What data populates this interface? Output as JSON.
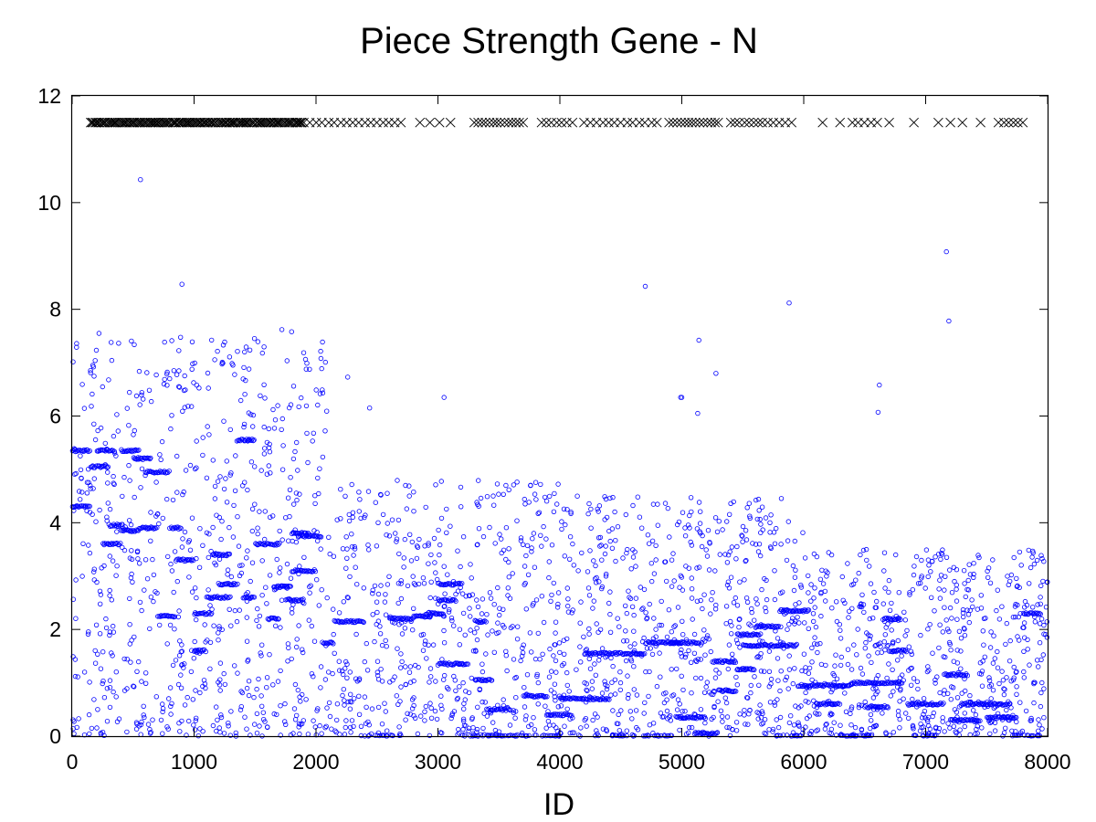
{
  "chart_data": {
    "type": "scatter",
    "title": "Piece Strength Gene - N",
    "xlabel": "ID",
    "ylabel": "",
    "xlim": [
      0,
      8000
    ],
    "ylim": [
      0,
      12
    ],
    "x_ticks": [
      "0",
      "1000",
      "2000",
      "3000",
      "4000",
      "5000",
      "6000",
      "7000",
      "8000"
    ],
    "y_ticks": [
      "0",
      "2",
      "4",
      "6",
      "8",
      "10",
      "12"
    ],
    "grid": false,
    "legend": "none",
    "series": [
      {
        "marker": "circle",
        "color": "#0000ff",
        "segments": [
          {
            "x": [
              0,
              150
            ],
            "y": 4.3
          },
          {
            "x": [
              0,
              150
            ],
            "y": 5.35
          },
          {
            "x": [
              150,
              300
            ],
            "y": 5.05
          },
          {
            "x": [
              200,
              350
            ],
            "y": 5.35
          },
          {
            "x": [
              250,
              400
            ],
            "y": 3.6
          },
          {
            "x": [
              300,
              420
            ],
            "y": 3.95
          },
          {
            "x": [
              400,
              550
            ],
            "y": 5.35
          },
          {
            "x": [
              400,
              550
            ],
            "y": 3.85
          },
          {
            "x": [
              500,
              650
            ],
            "y": 5.2
          },
          {
            "x": [
              550,
              700
            ],
            "y": 3.9
          },
          {
            "x": [
              600,
              800
            ],
            "y": 4.95
          },
          {
            "x": [
              700,
              850
            ],
            "y": 2.25
          },
          {
            "x": [
              800,
              900
            ],
            "y": 3.9
          },
          {
            "x": [
              850,
              1000
            ],
            "y": 3.3
          },
          {
            "x": [
              1000,
              1150
            ],
            "y": 2.3
          },
          {
            "x": [
              1000,
              1100
            ],
            "y": 1.6
          },
          {
            "x": [
              1100,
              1300
            ],
            "y": 2.6
          },
          {
            "x": [
              1150,
              1300
            ],
            "y": 3.4
          },
          {
            "x": [
              1200,
              1350
            ],
            "y": 2.85
          },
          {
            "x": [
              1350,
              1500
            ],
            "y": 5.55
          },
          {
            "x": [
              1400,
              1500
            ],
            "y": 2.6
          },
          {
            "x": [
              1500,
              1700
            ],
            "y": 3.6
          },
          {
            "x": [
              1600,
              1700
            ],
            "y": 2.2
          },
          {
            "x": [
              1650,
              1800
            ],
            "y": 2.8
          },
          {
            "x": [
              1750,
              1900
            ],
            "y": 2.55
          },
          {
            "x": [
              1800,
              2000
            ],
            "y": 3.1
          },
          {
            "x": [
              1800,
              1950
            ],
            "y": 3.8
          },
          {
            "x": [
              1850,
              2050
            ],
            "y": 3.75
          },
          {
            "x": [
              2050,
              2150
            ],
            "y": 1.75
          },
          {
            "x": [
              2150,
              2400
            ],
            "y": 2.15
          },
          {
            "x": [
              2400,
              2700
            ],
            "y": 0.0
          },
          {
            "x": [
              2600,
              2800
            ],
            "y": 2.2
          },
          {
            "x": [
              2800,
              2950
            ],
            "y": 2.25
          },
          {
            "x": [
              2900,
              3050
            ],
            "y": 2.3
          },
          {
            "x": [
              3000,
              3200
            ],
            "y": 2.85
          },
          {
            "x": [
              3000,
              3150
            ],
            "y": 2.55
          },
          {
            "x": [
              3000,
              3250
            ],
            "y": 1.35
          },
          {
            "x": [
              3200,
              3600
            ],
            "y": 0.0
          },
          {
            "x": [
              3300,
              3400
            ],
            "y": 2.15
          },
          {
            "x": [
              3300,
              3450
            ],
            "y": 1.05
          },
          {
            "x": [
              3400,
              3600
            ],
            "y": 0.5
          },
          {
            "x": [
              3600,
              4000
            ],
            "y": 0.0
          },
          {
            "x": [
              3700,
              3900
            ],
            "y": 0.75
          },
          {
            "x": [
              3900,
              4100
            ],
            "y": 0.4
          },
          {
            "x": [
              4000,
              4200
            ],
            "y": 0.7
          },
          {
            "x": [
              4200,
              4500
            ],
            "y": 1.55
          },
          {
            "x": [
              4200,
              4400
            ],
            "y": 0.7
          },
          {
            "x": [
              4400,
              4700
            ],
            "y": 0.0
          },
          {
            "x": [
              4500,
              4700
            ],
            "y": 1.55
          },
          {
            "x": [
              4700,
              5000
            ],
            "y": 1.75
          },
          {
            "x": [
              4700,
              4950
            ],
            "y": 0.0
          },
          {
            "x": [
              4900,
              5150
            ],
            "y": 1.75
          },
          {
            "x": [
              4950,
              5200
            ],
            "y": 0.35
          },
          {
            "x": [
              5100,
              5300
            ],
            "y": 0.05
          },
          {
            "x": [
              5250,
              5450
            ],
            "y": 1.4
          },
          {
            "x": [
              5300,
              5450
            ],
            "y": 0.85
          },
          {
            "x": [
              5450,
              5600
            ],
            "y": 1.25
          },
          {
            "x": [
              5450,
              5650
            ],
            "y": 1.9
          },
          {
            "x": [
              5600,
              5800
            ],
            "y": 2.05
          },
          {
            "x": [
              5500,
              5950
            ],
            "y": 1.7
          },
          {
            "x": [
              5750,
              6000
            ],
            "y": 0.0
          },
          {
            "x": [
              5800,
              6050
            ],
            "y": 2.35
          },
          {
            "x": [
              5950,
              6400
            ],
            "y": 0.95
          },
          {
            "x": [
              6100,
              6300
            ],
            "y": 0.6
          },
          {
            "x": [
              6300,
              6550
            ],
            "y": 0.0
          },
          {
            "x": [
              6400,
              6800
            ],
            "y": 1.0
          },
          {
            "x": [
              6500,
              6700
            ],
            "y": 0.55
          },
          {
            "x": [
              6650,
              6800
            ],
            "y": 2.2
          },
          {
            "x": [
              6700,
              6850
            ],
            "y": 1.6
          },
          {
            "x": [
              6850,
              7150
            ],
            "y": 0.6
          },
          {
            "x": [
              6900,
              7100
            ],
            "y": 0.0
          },
          {
            "x": [
              7150,
              7350
            ],
            "y": 1.15
          },
          {
            "x": [
              7200,
              7450
            ],
            "y": 0.3
          },
          {
            "x": [
              7300,
              7700
            ],
            "y": 0.6
          },
          {
            "x": [
              7500,
              7750
            ],
            "y": 0.35
          },
          {
            "x": [
              7700,
              7950
            ],
            "y": 0.0
          },
          {
            "x": [
              7800,
              7950
            ],
            "y": 2.3
          }
        ],
        "scatter_zones": [
          {
            "x": [
              0,
              2100
            ],
            "y": [
              0,
              7.5
            ],
            "n": 720
          },
          {
            "x": [
              2100,
              4000
            ],
            "y": [
              0,
              4.8
            ],
            "n": 560
          },
          {
            "x": [
              4000,
              6000
            ],
            "y": [
              0,
              4.5
            ],
            "n": 620
          },
          {
            "x": [
              6000,
              8000
            ],
            "y": [
              0,
              3.5
            ],
            "n": 620
          }
        ],
        "outliers": [
          [
            560,
            10.43
          ],
          [
            900,
            8.47
          ],
          [
            4700,
            8.43
          ],
          [
            5880,
            8.12
          ],
          [
            7170,
            9.08
          ],
          [
            7190,
            7.78
          ],
          [
            220,
            7.55
          ],
          [
            320,
            7.38
          ],
          [
            1240,
            7.33
          ],
          [
            1720,
            7.62
          ],
          [
            1800,
            7.58
          ],
          [
            1560,
            7.18
          ],
          [
            5140,
            7.42
          ],
          [
            5280,
            6.8
          ],
          [
            2260,
            6.73
          ],
          [
            800,
            6.7
          ],
          [
            1450,
            6.88
          ],
          [
            3050,
            6.35
          ],
          [
            6620,
            6.58
          ],
          [
            5000,
            6.35
          ],
          [
            6610,
            6.07
          ],
          [
            4990,
            6.35
          ],
          [
            2440,
            6.15
          ],
          [
            5130,
            6.05
          ]
        ]
      },
      {
        "marker": "cross",
        "color": "#000000",
        "y": 11.5,
        "x_ranges": [
          [
            150,
            1900,
            140
          ],
          [
            1950,
            2700,
            16
          ],
          [
            2850,
            3100,
            4
          ],
          [
            3300,
            3700,
            14
          ],
          [
            3850,
            4100,
            7
          ],
          [
            4200,
            4600,
            9
          ],
          [
            4650,
            4800,
            4
          ],
          [
            4900,
            5300,
            14
          ],
          [
            5400,
            5700,
            9
          ],
          [
            5750,
            5900,
            4
          ],
          [
            6150,
            6300,
            2
          ],
          [
            6400,
            6600,
            5
          ],
          [
            6700,
            6900,
            2
          ],
          [
            7100,
            7200,
            2
          ],
          [
            7300,
            7450,
            2
          ],
          [
            7600,
            7800,
            6
          ]
        ]
      }
    ]
  }
}
